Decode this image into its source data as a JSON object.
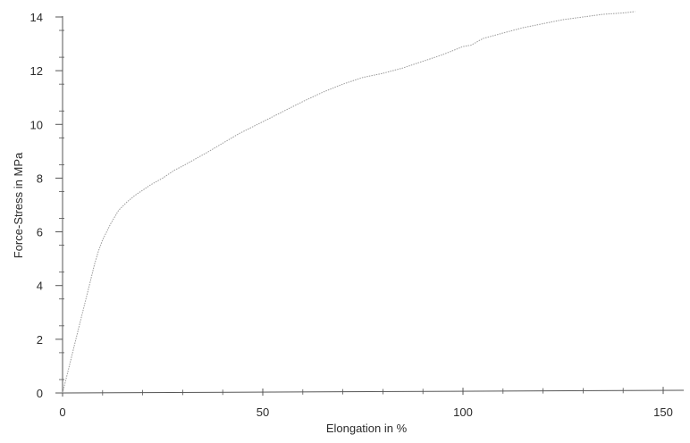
{
  "chart_data": {
    "type": "line",
    "title": "",
    "xlabel": "Elongation in %",
    "ylabel": "Force-Stress in MPa",
    "xlim": [
      0,
      155
    ],
    "ylim": [
      0,
      14
    ],
    "x_ticks": [
      0,
      50,
      100,
      150
    ],
    "x_tick_labels": [
      "0",
      "50",
      "100",
      "150"
    ],
    "y_ticks": [
      0,
      2,
      4,
      6,
      8,
      10,
      12,
      14
    ],
    "y_tick_labels": [
      "0",
      "2",
      "4",
      "6",
      "8",
      "10",
      "12",
      "14"
    ],
    "grid": false,
    "legend": "none",
    "colors": {
      "axis": "#555555",
      "line": "#9a9a9a"
    },
    "series": [
      {
        "x": [
          0,
          1,
          2,
          3,
          4,
          5,
          6,
          7,
          8,
          9,
          10,
          11,
          12,
          14,
          16,
          18,
          20,
          22,
          25,
          28,
          30,
          33,
          36,
          40,
          44,
          48,
          52,
          56,
          60,
          65,
          70,
          75,
          80,
          85,
          90,
          95,
          100,
          102,
          105,
          110,
          115,
          120,
          125,
          130,
          135,
          140,
          143
        ],
        "y": [
          0,
          0.6,
          1.2,
          1.8,
          2.4,
          3.0,
          3.6,
          4.2,
          4.8,
          5.3,
          5.7,
          6.0,
          6.3,
          6.8,
          7.1,
          7.35,
          7.55,
          7.75,
          8.0,
          8.3,
          8.45,
          8.7,
          8.95,
          9.3,
          9.65,
          9.95,
          10.25,
          10.55,
          10.85,
          11.2,
          11.5,
          11.75,
          11.9,
          12.1,
          12.35,
          12.6,
          12.9,
          12.95,
          13.2,
          13.4,
          13.6,
          13.75,
          13.9,
          14.0,
          14.1,
          14.15,
          14.2
        ]
      }
    ]
  }
}
